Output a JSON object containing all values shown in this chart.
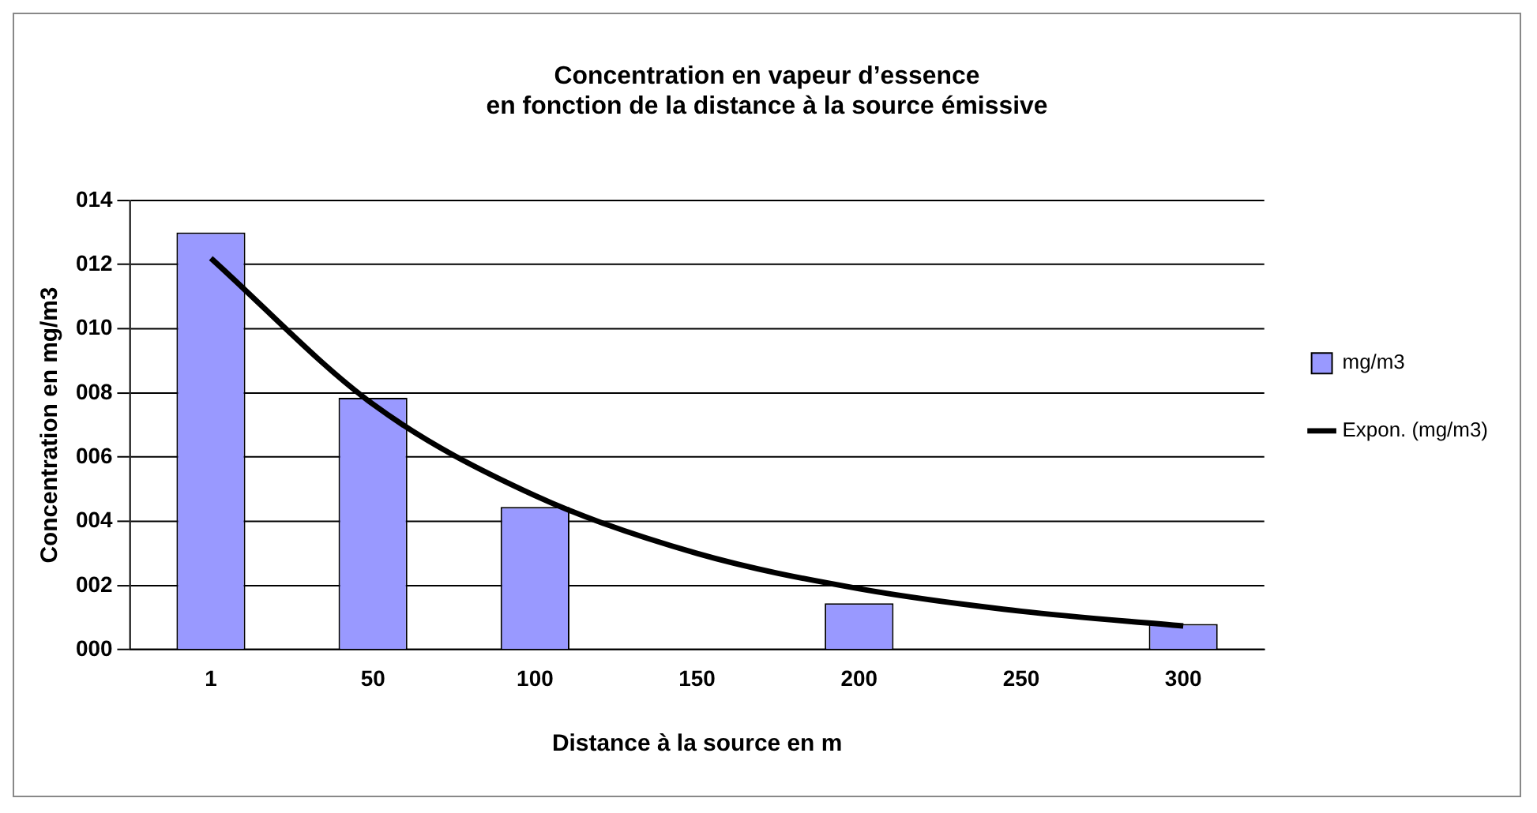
{
  "chart_data": {
    "type": "bar",
    "title": "Concentration en vapeur d’essence\nen fonction de la distance à la source émissive",
    "xlabel": "Distance à la source en m",
    "ylabel": "Concentration en mg/m3",
    "categories": [
      "1",
      "50",
      "100",
      "150",
      "200",
      "250",
      "300"
    ],
    "series": [
      {
        "name": "mg/m3",
        "color": "#9999ff",
        "values": [
          13.0,
          7.85,
          4.45,
          null,
          1.45,
          null,
          0.8
        ]
      },
      {
        "name": "Expon. (mg/m3)",
        "type": "line",
        "color": "#000000",
        "marker": "none",
        "values": [
          12.2,
          7.65,
          4.8,
          3.0,
          1.9,
          1.2,
          0.74
        ]
      }
    ],
    "ylim": [
      0,
      14
    ],
    "yticks": [
      {
        "value": 0,
        "label": "000"
      },
      {
        "value": 2,
        "label": "002"
      },
      {
        "value": 4,
        "label": "004"
      },
      {
        "value": 6,
        "label": "006"
      },
      {
        "value": 8,
        "label": "008"
      },
      {
        "value": 10,
        "label": "010"
      },
      {
        "value": 12,
        "label": "012"
      },
      {
        "value": 14,
        "label": "014"
      }
    ],
    "grid": "y",
    "legend": "right"
  }
}
